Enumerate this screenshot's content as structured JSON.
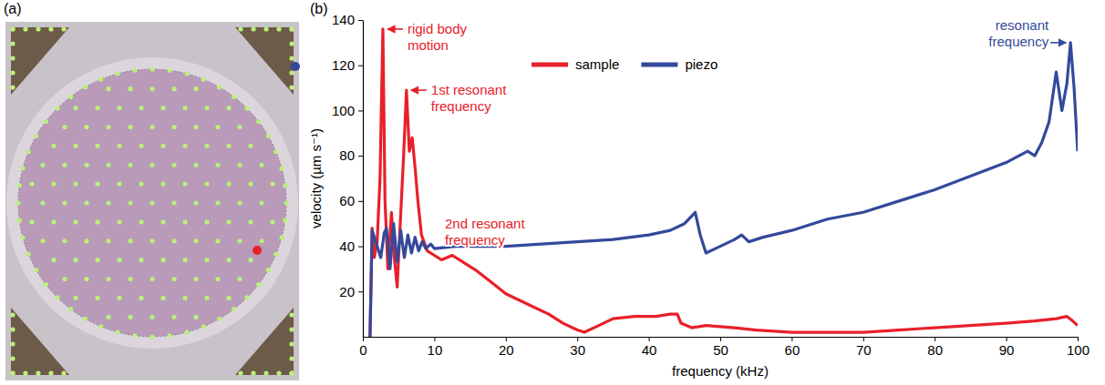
{
  "panel_labels": [
    "(a)",
    "(b)"
  ],
  "chart_data": {
    "type": "line",
    "x_label": "frequency (kHz)",
    "y_label": "velocity (µm s⁻¹)",
    "xlim": [
      0,
      100
    ],
    "xticks": [
      0,
      10,
      20,
      30,
      40,
      50,
      60,
      70,
      80,
      90,
      100
    ],
    "ylim": [
      0,
      140
    ],
    "yticks": [
      20,
      40,
      60,
      80,
      100,
      120,
      140
    ],
    "legend": "top",
    "series": [
      {
        "name": "sample",
        "color": "#e8202a",
        "x": [
          1,
          1.3,
          1.6,
          2,
          2.4,
          2.8,
          3.1,
          3.5,
          4,
          4.4,
          4.8,
          5.2,
          5.7,
          6.1,
          6.5,
          6.9,
          7.3,
          7.7,
          8.2,
          9,
          10,
          11,
          12.5,
          14,
          16,
          18,
          20,
          22,
          24,
          26,
          28,
          30,
          31,
          33,
          35,
          38,
          41,
          43,
          44,
          44.5,
          46,
          48,
          52,
          55,
          60,
          65,
          70,
          75,
          80,
          85,
          90,
          94,
          97,
          98.5,
          99.3,
          100
        ],
        "values": [
          0,
          48,
          35,
          42,
          70,
          136,
          60,
          30,
          55,
          35,
          22,
          48,
          80,
          109,
          82,
          88,
          75,
          60,
          45,
          38,
          36,
          34,
          36,
          33,
          29,
          24,
          19,
          16,
          13,
          10,
          6,
          3,
          2,
          5,
          8,
          9,
          9,
          10,
          10,
          6,
          4,
          5,
          4,
          3,
          2,
          2,
          2,
          3,
          4,
          5,
          6,
          7,
          8,
          9,
          7,
          5
        ]
      },
      {
        "name": "piezo",
        "color": "#34499b",
        "x": [
          1,
          1.3,
          1.7,
          2,
          2.5,
          3,
          3.3,
          3.8,
          4.3,
          4.8,
          5.3,
          5.8,
          6.3,
          6.8,
          7.3,
          7.8,
          8.3,
          8.8,
          9.5,
          10,
          13,
          20,
          25,
          30,
          35,
          40,
          43,
          45,
          46.5,
          47.2,
          48,
          50,
          52,
          53,
          54,
          56,
          60,
          65,
          70,
          75,
          80,
          85,
          90,
          93,
          94,
          95,
          96,
          97,
          97.8,
          98.5,
          99,
          99.5,
          100
        ],
        "values": [
          0,
          47,
          43,
          40,
          35,
          46,
          48,
          30,
          50,
          33,
          47,
          35,
          45,
          37,
          44,
          38,
          42,
          39,
          41,
          39,
          40,
          40,
          41,
          42,
          43,
          45,
          47,
          50,
          55,
          45,
          37,
          40,
          43,
          45,
          42,
          44,
          47,
          52,
          55,
          60,
          65,
          71,
          77,
          82,
          80,
          86,
          95,
          117,
          100,
          112,
          130,
          110,
          82
        ]
      }
    ],
    "annotations": [
      {
        "text": [
          "rigid body",
          "motion"
        ],
        "x": 2.8,
        "y": 136,
        "color": "#e8202a"
      },
      {
        "text": [
          "1st resonant",
          "frequency"
        ],
        "x": 6.1,
        "y": 109,
        "color": "#e8202a"
      },
      {
        "text": [
          "2nd resonant",
          "frequency"
        ],
        "x": 12.5,
        "y": 36,
        "color": "#e8202a"
      },
      {
        "text": [
          "resonant",
          "frequency"
        ],
        "x": 99,
        "y": 130,
        "color": "#34499b"
      }
    ]
  }
}
